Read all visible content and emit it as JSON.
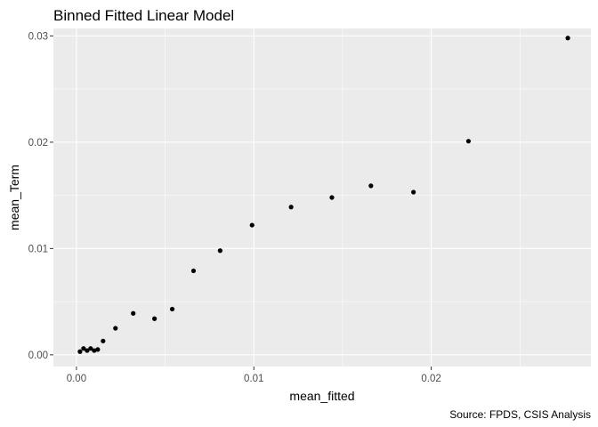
{
  "chart_data": {
    "type": "scatter",
    "title": "Binned Fitted Linear Model",
    "xlabel": "mean_fitted",
    "ylabel": "mean_Term",
    "caption": "Source: FPDS, CSIS Analysis",
    "xlim": [
      -0.0013,
      0.029
    ],
    "ylim": [
      -0.0011,
      0.0307
    ],
    "x_ticks": [
      0,
      0.01,
      0.02
    ],
    "x_tick_labels": [
      "0.00",
      "0.01",
      "0.02"
    ],
    "y_ticks": [
      0,
      0.01,
      0.02,
      0.03
    ],
    "y_tick_labels": [
      "0.00",
      "0.01",
      "0.02",
      "0.03"
    ],
    "grid": true,
    "legend": "none",
    "colors": {
      "panel": "#ebebeb",
      "grid_major": "#ffffff",
      "point": "#000000"
    },
    "points": [
      {
        "x": 0.0002,
        "y": 0.0003
      },
      {
        "x": 0.0004,
        "y": 0.0006
      },
      {
        "x": 0.0006,
        "y": 0.0004
      },
      {
        "x": 0.0008,
        "y": 0.0006
      },
      {
        "x": 0.001,
        "y": 0.0004
      },
      {
        "x": 0.0012,
        "y": 0.0005
      },
      {
        "x": 0.0015,
        "y": 0.0013
      },
      {
        "x": 0.0022,
        "y": 0.0025
      },
      {
        "x": 0.0032,
        "y": 0.0039
      },
      {
        "x": 0.0044,
        "y": 0.0034
      },
      {
        "x": 0.0054,
        "y": 0.0043
      },
      {
        "x": 0.0066,
        "y": 0.0079
      },
      {
        "x": 0.0081,
        "y": 0.0098
      },
      {
        "x": 0.0099,
        "y": 0.0122
      },
      {
        "x": 0.0121,
        "y": 0.0139
      },
      {
        "x": 0.0144,
        "y": 0.0148
      },
      {
        "x": 0.0166,
        "y": 0.0159
      },
      {
        "x": 0.019,
        "y": 0.0153
      },
      {
        "x": 0.0221,
        "y": 0.0201
      },
      {
        "x": 0.0277,
        "y": 0.0298
      }
    ]
  }
}
